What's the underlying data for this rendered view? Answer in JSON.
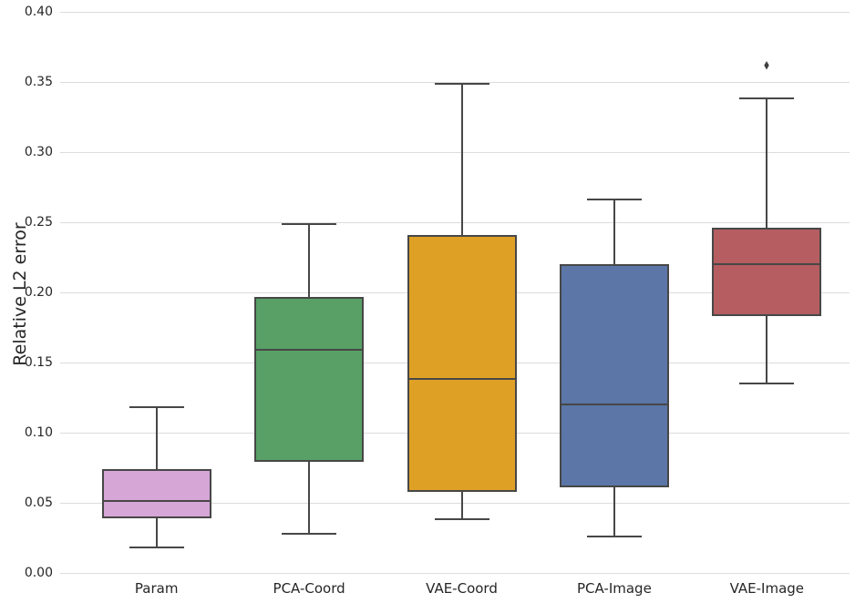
{
  "chart_data": {
    "type": "box",
    "title": "",
    "xlabel": "",
    "ylabel": "Relative L2 error",
    "ylim": [
      0.0,
      0.4
    ],
    "ytick_step": 0.05,
    "yticks": [
      "0.00",
      "0.05",
      "0.10",
      "0.15",
      "0.20",
      "0.25",
      "0.30",
      "0.35",
      "0.40"
    ],
    "grid": "horizontal",
    "legend": "none",
    "categories": [
      "Param",
      "PCA-Coord",
      "VAE-Coord",
      "PCA-Image",
      "VAE-Image"
    ],
    "series": [
      {
        "name": "Param",
        "color": "#d5a6d6",
        "whisker_low": 0.018,
        "q1": 0.039,
        "median": 0.051,
        "q3": 0.074,
        "whisker_high": 0.118,
        "outliers": []
      },
      {
        "name": "PCA-Coord",
        "color": "#58a066",
        "whisker_low": 0.028,
        "q1": 0.079,
        "median": 0.159,
        "q3": 0.197,
        "whisker_high": 0.249,
        "outliers": []
      },
      {
        "name": "VAE-Coord",
        "color": "#dfa026",
        "whisker_low": 0.038,
        "q1": 0.058,
        "median": 0.138,
        "q3": 0.241,
        "whisker_high": 0.349,
        "outliers": []
      },
      {
        "name": "PCA-Image",
        "color": "#5b76a7",
        "whisker_low": 0.026,
        "q1": 0.061,
        "median": 0.12,
        "q3": 0.22,
        "whisker_high": 0.266,
        "outliers": []
      },
      {
        "name": "VAE-Image",
        "color": "#b55d60",
        "whisker_low": 0.135,
        "q1": 0.183,
        "median": 0.22,
        "q3": 0.246,
        "whisker_high": 0.338,
        "outliers": [
          0.361
        ]
      }
    ],
    "style_colors": {
      "grid": "#dcdcdc",
      "box_edge": "#474747",
      "text": "#262626"
    }
  }
}
